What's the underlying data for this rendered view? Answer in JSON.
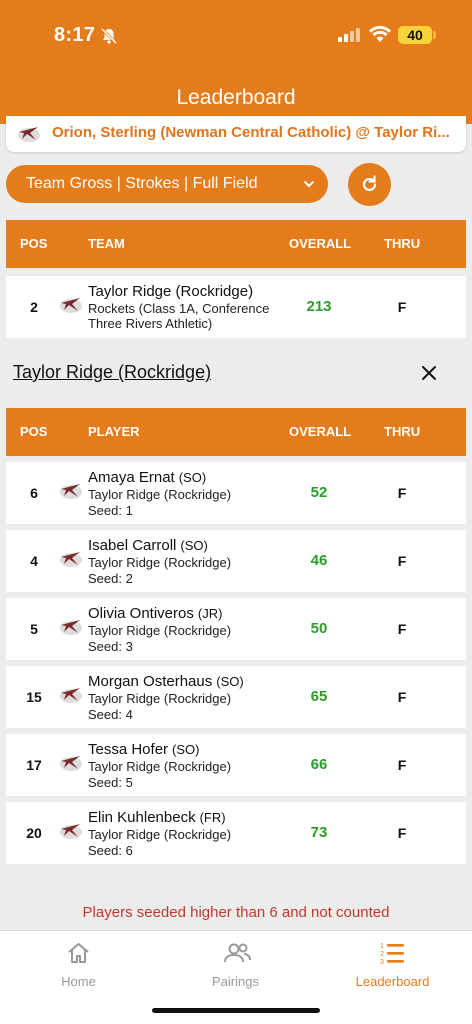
{
  "status_bar": {
    "time": "8:17",
    "battery": "40"
  },
  "header": {
    "title": "Leaderboard"
  },
  "match": {
    "title": "Orion, Sterling (Newman Central Catholic) @ Taylor Ri..."
  },
  "filter": {
    "label": "Team Gross | Strokes | Full Field"
  },
  "team_table": {
    "headers": {
      "pos": "POS",
      "name": "TEAM",
      "overall": "OVERALL",
      "thru": "THRU"
    },
    "rows": [
      {
        "pos": "2",
        "name": "Taylor Ridge (Rockridge)",
        "detail": "Rockets (Class 1A, Conference Three Rivers Athletic)",
        "overall": "213",
        "thru": "F"
      }
    ]
  },
  "selected_team": {
    "label": "Taylor Ridge (Rockridge)"
  },
  "player_table": {
    "headers": {
      "pos": "POS",
      "name": "PLAYER",
      "overall": "OVERALL",
      "thru": "THRU"
    },
    "rows": [
      {
        "pos": "6",
        "name": "Amaya Ernat",
        "grade": "(SO)",
        "school": "Taylor Ridge (Rockridge)",
        "seed": "Seed: 1",
        "overall": "52",
        "thru": "F"
      },
      {
        "pos": "4",
        "name": "Isabel Carroll",
        "grade": "(SO)",
        "school": "Taylor Ridge (Rockridge)",
        "seed": "Seed: 2",
        "overall": "46",
        "thru": "F"
      },
      {
        "pos": "5",
        "name": "Olivia Ontiveros",
        "grade": "(JR)",
        "school": "Taylor Ridge (Rockridge)",
        "seed": "Seed: 3",
        "overall": "50",
        "thru": "F"
      },
      {
        "pos": "15",
        "name": "Morgan Osterhaus",
        "grade": "(SO)",
        "school": "Taylor Ridge (Rockridge)",
        "seed": "Seed: 4",
        "overall": "65",
        "thru": "F"
      },
      {
        "pos": "17",
        "name": "Tessa Hofer",
        "grade": "(SO)",
        "school": "Taylor Ridge (Rockridge)",
        "seed": "Seed: 5",
        "overall": "66",
        "thru": "F"
      },
      {
        "pos": "20",
        "name": "Elin Kuhlenbeck",
        "grade": "(FR)",
        "school": "Taylor Ridge (Rockridge)",
        "seed": "Seed: 6",
        "overall": "73",
        "thru": "F"
      }
    ]
  },
  "footnote": "Players seeded higher than 6 and not counted",
  "tabs": [
    {
      "label": "Home",
      "icon": "home-icon"
    },
    {
      "label": "Pairings",
      "icon": "people-icon"
    },
    {
      "label": "Leaderboard",
      "icon": "list-numbered-icon"
    }
  ],
  "colors": {
    "accent": "#e57c1b",
    "score": "#2a9d2a",
    "warning": "#c0392b"
  }
}
